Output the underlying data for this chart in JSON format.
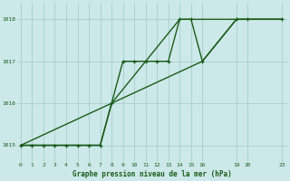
{
  "title": "Graphe pression niveau de la mer (hPa)",
  "bg_color": "#cce8e8",
  "grid_color": "#aacece",
  "line_color": "#1a5c1a",
  "x_ticks": [
    0,
    1,
    2,
    3,
    4,
    5,
    6,
    7,
    8,
    9,
    10,
    11,
    12,
    13,
    14,
    15,
    16,
    19,
    20,
    23
  ],
  "x_tick_labels": [
    "0",
    "1",
    "2",
    "3",
    "4",
    "5",
    "6",
    "7",
    "8",
    "9",
    "10",
    "11",
    "12",
    "13",
    "14",
    "15",
    "16",
    "19",
    "20",
    "23"
  ],
  "ylim": [
    1014.6,
    1018.4
  ],
  "xlim": [
    -0.3,
    23.5
  ],
  "yticks": [
    1015,
    1016,
    1017,
    1018
  ],
  "series": [
    {
      "x": [
        0,
        1,
        2,
        3,
        4,
        5,
        6,
        7,
        8,
        9,
        10,
        11,
        12,
        13,
        14,
        15,
        16,
        19,
        20,
        23
      ],
      "y": [
        1015.0,
        1015.0,
        1015.0,
        1015.0,
        1015.0,
        1015.0,
        1015.0,
        1015.0,
        1016.0,
        1017.0,
        1017.0,
        1017.0,
        1017.0,
        1017.0,
        1018.0,
        1018.0,
        1017.0,
        1018.0,
        1018.0,
        1018.0
      ],
      "marker": "+",
      "dashed": false,
      "lw": 1.0
    },
    {
      "x": [
        0,
        2,
        7,
        8,
        14,
        15,
        19,
        23
      ],
      "y": [
        1015.0,
        1015.0,
        1015.0,
        1016.0,
        1018.0,
        1018.0,
        1018.0,
        1018.0
      ],
      "marker": null,
      "dashed": false,
      "lw": 1.0
    },
    {
      "x": [
        0,
        16,
        19,
        23
      ],
      "y": [
        1015.0,
        1017.0,
        1018.0,
        1018.0
      ],
      "marker": null,
      "dashed": false,
      "lw": 1.0
    }
  ]
}
